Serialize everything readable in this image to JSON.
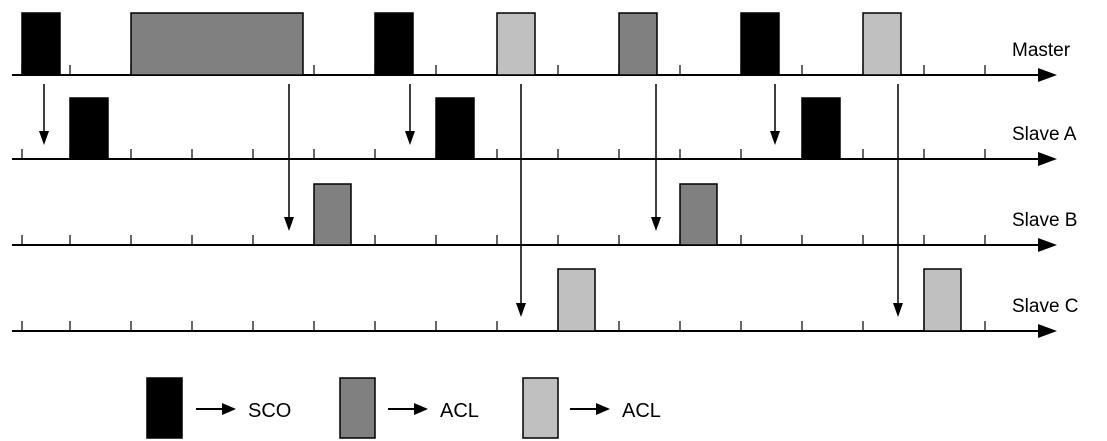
{
  "colors": {
    "sco": "#000000",
    "acl_dark": "#808080",
    "acl_light": "#c0c0c0",
    "line": "#000000",
    "background": "#ffffff"
  },
  "lanes": [
    {
      "id": "master",
      "label": "Master"
    },
    {
      "id": "slave-a",
      "label": "Slave A"
    },
    {
      "id": "slave-b",
      "label": "Slave B"
    },
    {
      "id": "slave-c",
      "label": "Slave C"
    }
  ],
  "legend": [
    {
      "type": "SCO",
      "color_key": "sco",
      "label": "SCO"
    },
    {
      "type": "ACL",
      "color_key": "acl_dark",
      "label": "ACL"
    },
    {
      "type": "ACL",
      "color_key": "acl_light",
      "label": "ACL"
    }
  ]
}
